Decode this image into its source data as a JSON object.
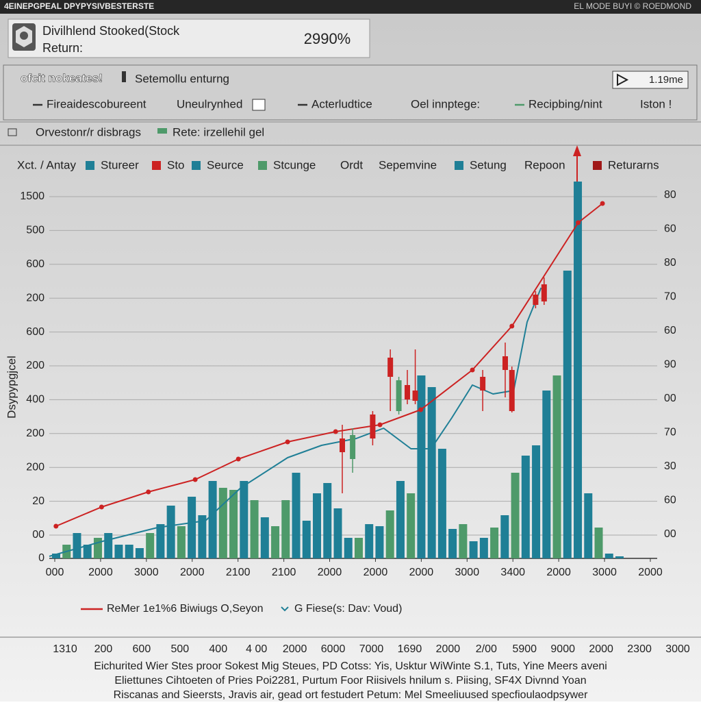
{
  "topbar": {
    "left": "4EINEPGPEAL DPYPYSIVBESTERSTE",
    "right": "EL MODE BUYI © ROEDMOND"
  },
  "card": {
    "title_line1": "Divilhlend Stooked(Stock",
    "title_line2": "Return:",
    "value": "2990%"
  },
  "toolbar": {
    "brand": "ofcit nokeates!",
    "subtitle": "Setemollu enturng",
    "play_label": "1.19me",
    "tabs": [
      "Fireaidescobureent",
      "Uneulrynhed",
      "Acterludtice",
      "Oel innptege:",
      "Recipbing/nint",
      "Iston !"
    ]
  },
  "filters": {
    "left": "Orvestonr/r disbrags",
    "right": "Rete: irzellehil gel"
  },
  "chart_data": {
    "type": "bar",
    "y_label": "Dsypypgjcel",
    "legend": [
      {
        "name": "Xct. / Antay"
      },
      {
        "name": "Stureer",
        "color": "#1f7f96"
      },
      {
        "name": "Sto",
        "color": "#cc2222"
      },
      {
        "name": "Seurce",
        "color": "#1f7f96"
      },
      {
        "name": "Stcunge",
        "color": "#4e9a6a"
      },
      {
        "name": "Ordt"
      },
      {
        "name": "Sepemvine"
      },
      {
        "name": "Setung",
        "color": "#1f7f96"
      },
      {
        "name": "Repoon"
      },
      {
        "name": "Returarns",
        "color": "#a01818"
      }
    ],
    "y_axis_labels": [
      "1500",
      "500",
      "600",
      "200",
      "600",
      "200",
      "400",
      "200",
      "200",
      "20",
      "00",
      "0"
    ],
    "y2_axis_labels": [
      "80",
      "60",
      "80",
      "70",
      "60",
      "90",
      "00",
      "70",
      "30",
      "60",
      "00"
    ],
    "x_axis_labels": [
      "000",
      "2000",
      "3000",
      "2000",
      "2100",
      "2100",
      "2000",
      "2000",
      "2000",
      "3000",
      "3400",
      "2000",
      "3000",
      "2000"
    ],
    "xlim": [
      0,
      100
    ],
    "ylim": [
      0,
      110
    ],
    "grid": true,
    "bars": {
      "values": [
        1.4,
        4,
        7.4,
        4,
        6,
        7.4,
        4,
        4,
        3,
        7.4,
        10,
        15.4,
        9.4,
        18,
        12.6,
        22.6,
        20.6,
        20,
        22.6,
        17,
        12,
        9.4,
        17,
        25,
        11,
        19,
        22,
        14.6,
        6,
        6,
        10,
        9.4,
        14,
        22.6,
        19,
        53.4,
        50,
        32,
        8.6,
        10,
        5,
        6,
        9,
        12.6,
        25,
        30,
        33,
        49,
        53.4,
        84,
        110,
        19,
        9,
        1.4,
        0.6
      ],
      "colors": [
        "#1f7f96",
        "#4e9a6a",
        "#1f7f96",
        "#1f7f96",
        "#4e9a6a",
        "#1f7f96",
        "#1f7f96",
        "#1f7f96",
        "#1f7f96",
        "#4e9a6a",
        "#1f7f96",
        "#1f7f96",
        "#4e9a6a",
        "#1f7f96",
        "#1f7f96",
        "#1f7f96",
        "#4e9a6a",
        "#4e9a6a",
        "#1f7f96",
        "#4e9a6a",
        "#1f7f96",
        "#4e9a6a",
        "#4e9a6a",
        "#1f7f96",
        "#1f7f96",
        "#1f7f96",
        "#1f7f96",
        "#1f7f96",
        "#1f7f96",
        "#4e9a6a",
        "#1f7f96",
        "#1f7f96",
        "#4e9a6a",
        "#1f7f96",
        "#4e9a6a",
        "#1f7f96",
        "#1f7f96",
        "#1f7f96",
        "#1f7f96",
        "#4e9a6a",
        "#1f7f96",
        "#1f7f96",
        "#4e9a6a",
        "#1f7f96",
        "#4e9a6a",
        "#1f7f96",
        "#1f7f96",
        "#1f7f96",
        "#4e9a6a",
        "#1f7f96",
        "#1f7f96",
        "#1f7f96",
        "#4e9a6a",
        "#1f7f96",
        "#1f7f96"
      ]
    },
    "series": [
      {
        "color": "#cc2222",
        "x": [
          1.1,
          8.6,
          16.3,
          24,
          31.1,
          39.2,
          47.1,
          54.4,
          61.1,
          69.6,
          76.1,
          87,
          91
        ],
        "values": [
          9.4,
          15,
          19.4,
          23,
          29,
          34,
          37,
          39,
          43.4,
          55,
          67.8,
          98,
          103.6
        ]
      },
      {
        "color": "#1f7f96",
        "x": [
          0,
          8.8,
          17.8,
          25.7,
          31.5,
          39.2,
          44.8,
          50.5,
          55,
          59.5,
          62.8,
          66.2,
          69.6,
          73,
          76.4,
          78.6,
          80.9
        ],
        "values": [
          0.6,
          5,
          9,
          11,
          20.6,
          29.4,
          33,
          35,
          38,
          32,
          32,
          41,
          50.6,
          48,
          49,
          69,
          79
        ]
      }
    ],
    "candles": {
      "up_color": "#4e9a6a",
      "down_color": "#cc2222",
      "x": [
        48.2,
        49.9,
        53.2,
        56.1,
        57.5,
        58.9,
        60.2,
        71.3,
        75,
        76.1,
        80,
        81.4
      ],
      "open": [
        35,
        29,
        42,
        58.6,
        43,
        50.6,
        49,
        53,
        59,
        55,
        77,
        80
      ],
      "close": [
        31,
        36,
        35,
        53,
        52,
        46.4,
        46,
        49,
        55,
        43,
        74,
        75
      ],
      "high": [
        39,
        38,
        43,
        61,
        53,
        55,
        61,
        55,
        63,
        56,
        78,
        82
      ],
      "low": [
        19,
        25,
        33,
        43,
        42,
        45,
        45,
        43,
        47,
        42.6,
        73,
        74
      ]
    }
  },
  "bottom_legend": {
    "line_label": "ReMer 1e1%6 Biwiugs O,Seyon",
    "marker_label": "G Fiese(s: Dav: Voud)"
  },
  "bottom_axis": [
    "1310",
    "200",
    "600",
    "500",
    "400",
    "4 00",
    "2000",
    "6000",
    "7000",
    "1690",
    "2000",
    "2/00",
    "5900",
    "9000",
    "2000",
    "2300",
    "3000"
  ],
  "footer": [
    "Eichurited Wier Stes proor  Sokest Mig Steues,  PD Cotss:  Yis,  Usktur WiWinte  S.1,  Tuts,  Yine Meers aveni",
    "Eliettunes  Cihtoeten  of  Pries  Poi2281,  Purtum  Foor  Riisivels  hnilum s.  Piising,  SF4X  Divnnd  Yoan",
    "Riscanas and  Sieersts,  Jravis air, gead  ort  festudert  Petum: Mel Smeeliuused  specfioulaodpsywer"
  ]
}
